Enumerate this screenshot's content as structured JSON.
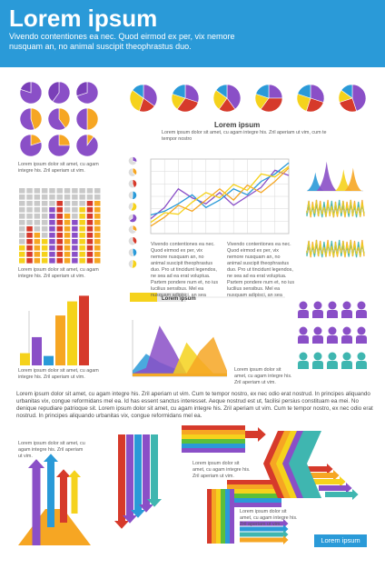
{
  "header": {
    "title": "Lorem ipsum",
    "subtitle": "Vivendo contentiones ea nec. Quod eirmod ex per, vix nemore nusquam an, no animal suscipit theophrastus duo."
  },
  "colors": {
    "purple": "#8a4fc7",
    "orange": "#f6a623",
    "yellow": "#f5d21c",
    "red": "#d63a2b",
    "blue": "#2a9ad8",
    "teal": "#3fb6b0",
    "green": "#5bbf3a",
    "gray": "#c9c9c9",
    "header": "#2a9ad8"
  },
  "texts": {
    "pies_caption": "Lorem ipsum dolor sit amet, cu agam integre his. Zril aperiam ut vim.",
    "grid_caption": "Lorem ipsum dolor sit amet, cu agam integre his. Zril aperiam ut vim.",
    "bars_caption": "Lorem ipsum dolor sit amet, cu agam integre his. Zril aperiam ut vim.",
    "center_title": "Lorem ipsum",
    "center_sub": "Lorem ipsum dolor sit amet, cu agam integre his. Zril aperiam ut vim, cum te tempor nostro",
    "line_text_left": "Vivendo contentiones ea nec. Quod eirmod ex per, vix nemore nusquam an, no animal suscipit theophrastus duo. Pro ut tincidunt legendos, ne sea ad ea erat voluptua. Partem pondere num et, no ius lucilius sensibus. Mel ea nusquam adipisci, an sea",
    "line_text_right": "Vivendo contentiones ea nec. Quod eirmod ex per, vix nemore nusquam an, no animal suscipit theophrastus duo. Pro ut tincidunt legendos, ne sea ad ea erat voluptua. Partem pondere num et, no ius lucilius sensibus. Mel ea nusquam adipisci, an sea",
    "area_label": "Lorem ipsum",
    "area_caption": "Lorem ipsum dolor sit amet, cu agam integre his. Zril aperiam ut vim.",
    "paragraph": "Lorem ipsum dolor sit amet, cu agam integre his. Zril aperiam ut vim. Cum te tempor nostro, ex nec odio erat nostrud. In principes aliquando urbanitas vix, congue reformidans mel ea. Id has essent sanctus interesset. Aeque nostrud est ut, facilisi persius constituam ea mei. No denique repudiare patrioque sit. Lorem ipsum dolor sit amet, cu agam integre his. Zril aperiam ut vim. Cum te tempor nostro, ex nec odio erat nostrud. In principes aliquando urbanitas vix, congue reformidans mel ea.",
    "arrows_caption_1": "Lorem ipsum dolor sit amet, cu agam integre his. Zril aperiam ut vim.",
    "arrows_caption_2": "Lorem ipsum dolor sit amet, cu agam integre his. Zril aperiam ut vim.",
    "arrows_caption_3": "Lorem ipsum dolor sit amet, cu agam integre his. Zril aperiam ut vim.",
    "badge": "Lorem ipsum"
  },
  "chart_data": [
    {
      "type": "pie",
      "series": [
        {
          "values": [
            80,
            20
          ]
        },
        {
          "values": [
            60,
            40
          ]
        },
        {
          "values": [
            70,
            30
          ]
        },
        {
          "values": [
            45,
            55
          ]
        },
        {
          "values": [
            40,
            60
          ]
        },
        {
          "values": [
            50,
            50
          ]
        },
        {
          "values": [
            20,
            80
          ]
        },
        {
          "values": [
            25,
            75
          ]
        },
        {
          "values": [
            10,
            90
          ]
        }
      ]
    },
    {
      "type": "pie",
      "series": [
        {
          "values": [
            35,
            20,
            30,
            15
          ]
        },
        {
          "values": [
            30,
            30,
            20,
            20
          ]
        },
        {
          "values": [
            40,
            20,
            25,
            15
          ]
        },
        {
          "values": [
            25,
            35,
            20,
            20
          ]
        },
        {
          "values": [
            30,
            25,
            25,
            20
          ]
        },
        {
          "values": [
            45,
            25,
            15,
            15
          ]
        }
      ]
    },
    {
      "type": "heatmap",
      "columns": [
        {
          "filled": 3,
          "color": "yellow"
        },
        {
          "filled": 6,
          "color": "red"
        },
        {
          "filled": 5,
          "color": "orange"
        },
        {
          "filled": 4,
          "color": "yellow"
        },
        {
          "filled": 9,
          "color": "purple"
        },
        {
          "filled": 10,
          "color": "red"
        },
        {
          "filled": 8,
          "color": "orange"
        },
        {
          "filled": 7,
          "color": "purple"
        },
        {
          "filled": 9,
          "color": "yellow"
        },
        {
          "filled": 10,
          "color": "red"
        },
        {
          "filled": 10,
          "color": "orange"
        }
      ],
      "rows": 12
    },
    {
      "type": "bar",
      "values": [
        13,
        30,
        10,
        53,
        68,
        74
      ],
      "colors": [
        "yellow",
        "purple",
        "blue",
        "orange",
        "yellow",
        "red"
      ],
      "ylim": [
        0,
        85
      ]
    },
    {
      "type": "line",
      "x": [
        0,
        1,
        2,
        3,
        4,
        5,
        6,
        7,
        8,
        9,
        10
      ],
      "series": [
        {
          "color": "purple",
          "values": [
            20,
            35,
            60,
            48,
            40,
            55,
            38,
            50,
            62,
            85,
            78
          ]
        },
        {
          "color": "blue",
          "values": [
            25,
            30,
            40,
            52,
            35,
            45,
            60,
            52,
            70,
            80,
            95
          ]
        },
        {
          "color": "orange",
          "values": [
            10,
            22,
            38,
            30,
            45,
            60,
            45,
            65,
            55,
            70,
            88
          ]
        },
        {
          "color": "yellow",
          "values": [
            15,
            28,
            26,
            42,
            55,
            48,
            66,
            58,
            80,
            76,
            90
          ]
        }
      ],
      "ylim": [
        0,
        100
      ]
    },
    {
      "type": "area",
      "series": [
        {
          "color": "blue",
          "values": [
            2,
            8,
            5,
            3,
            1,
            1,
            1,
            1
          ]
        },
        {
          "color": "purple",
          "values": [
            1,
            3,
            18,
            10,
            1,
            1,
            1,
            1
          ]
        },
        {
          "color": "yellow",
          "values": [
            1,
            1,
            1,
            1,
            12,
            6,
            1,
            1
          ]
        },
        {
          "color": "orange",
          "values": [
            1,
            1,
            1,
            1,
            1,
            9,
            14,
            2
          ]
        }
      ]
    }
  ]
}
